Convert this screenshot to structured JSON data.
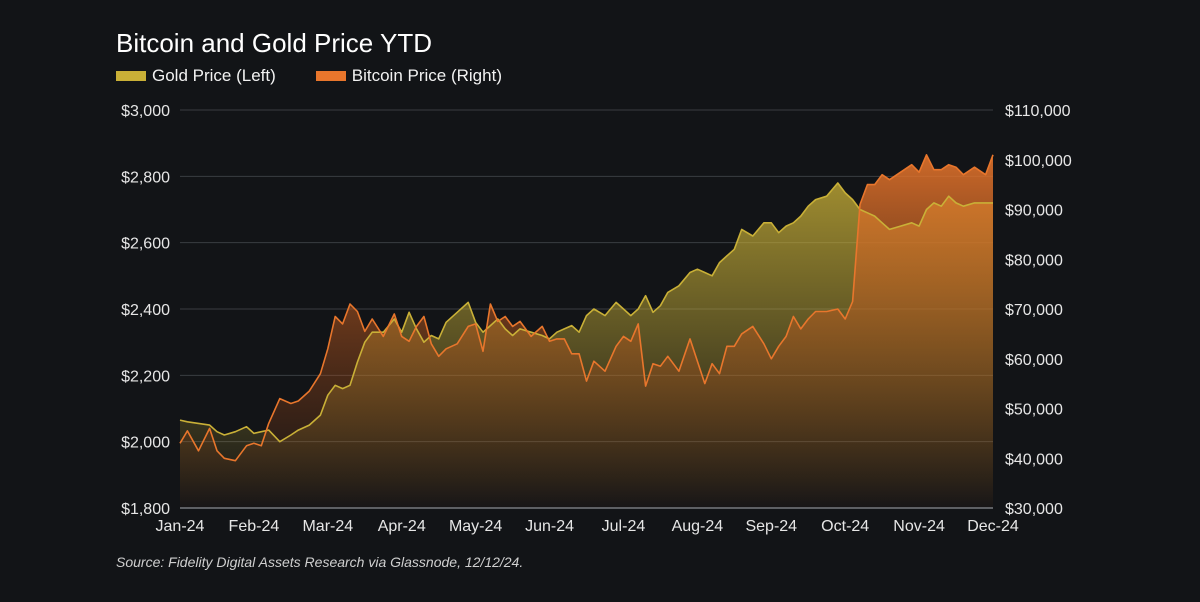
{
  "chart_data": {
    "type": "area",
    "title": "Bitcoin and Gold Price YTD",
    "legend_position": "top-left",
    "legend": [
      {
        "name": "Gold Price (Left)",
        "color": "#c9b037"
      },
      {
        "name": "Bitcoin Price (Right)",
        "color": "#e8762c"
      }
    ],
    "x_tick_labels": [
      "Jan-24",
      "Feb-24",
      "Mar-24",
      "Apr-24",
      "May-24",
      "Jun-24",
      "Jul-24",
      "Aug-24",
      "Sep-24",
      "Oct-24",
      "Nov-24",
      "Dec-24"
    ],
    "y_left": {
      "label": "Gold Price",
      "min": 1800,
      "max": 3000,
      "tick_labels": [
        "$1,800",
        "$2,000",
        "$2,200",
        "$2,400",
        "$2,600",
        "$2,800",
        "$3,000"
      ]
    },
    "y_right": {
      "label": "Bitcoin Price",
      "min": 30000,
      "max": 110000,
      "tick_labels": [
        "$30,000",
        "$40,000",
        "$50,000",
        "$60,000",
        "$70,000",
        "$80,000",
        "$90,000",
        "$100,000",
        "$110,000"
      ]
    },
    "grid": true,
    "series": [
      {
        "name": "Gold Price (Left)",
        "axis": "left",
        "color": "#c9b037",
        "x": [
          0,
          0.1,
          0.25,
          0.4,
          0.5,
          0.6,
          0.75,
          0.9,
          1.0,
          1.1,
          1.2,
          1.35,
          1.5,
          1.6,
          1.75,
          1.9,
          2.0,
          2.1,
          2.2,
          2.3,
          2.4,
          2.5,
          2.6,
          2.75,
          2.9,
          3.0,
          3.1,
          3.2,
          3.3,
          3.4,
          3.5,
          3.6,
          3.75,
          3.9,
          4.0,
          4.1,
          4.2,
          4.3,
          4.4,
          4.5,
          4.6,
          4.75,
          4.9,
          5.0,
          5.1,
          5.2,
          5.3,
          5.4,
          5.5,
          5.6,
          5.75,
          5.9,
          6.0,
          6.1,
          6.2,
          6.3,
          6.4,
          6.5,
          6.6,
          6.75,
          6.9,
          7.0,
          7.1,
          7.2,
          7.3,
          7.4,
          7.5,
          7.6,
          7.75,
          7.9,
          8.0,
          8.1,
          8.2,
          8.3,
          8.4,
          8.5,
          8.6,
          8.75,
          8.9,
          9.0,
          9.1,
          9.2,
          9.3,
          9.4,
          9.5,
          9.6,
          9.75,
          9.9,
          10.0,
          10.1,
          10.2,
          10.3,
          10.4,
          10.5,
          10.6,
          10.75,
          10.9,
          11.0
        ],
        "values": [
          2065,
          2060,
          2055,
          2050,
          2030,
          2020,
          2030,
          2045,
          2025,
          2030,
          2035,
          2000,
          2020,
          2035,
          2050,
          2080,
          2140,
          2170,
          2160,
          2170,
          2240,
          2300,
          2330,
          2330,
          2370,
          2330,
          2390,
          2340,
          2300,
          2320,
          2310,
          2360,
          2390,
          2420,
          2360,
          2330,
          2350,
          2370,
          2340,
          2320,
          2340,
          2330,
          2320,
          2310,
          2330,
          2340,
          2350,
          2330,
          2380,
          2400,
          2380,
          2420,
          2400,
          2380,
          2400,
          2440,
          2390,
          2410,
          2450,
          2470,
          2510,
          2520,
          2510,
          2500,
          2540,
          2560,
          2580,
          2640,
          2620,
          2660,
          2660,
          2630,
          2650,
          2660,
          2680,
          2710,
          2730,
          2740,
          2780,
          2750,
          2730,
          2700,
          2690,
          2680,
          2660,
          2640,
          2650,
          2660,
          2650,
          2700,
          2720,
          2710,
          2740,
          2720,
          2710,
          2720,
          2720,
          2720
        ]
      },
      {
        "name": "Bitcoin Price (Right)",
        "axis": "right",
        "color": "#e8762c",
        "x": [
          0,
          0.1,
          0.25,
          0.4,
          0.5,
          0.6,
          0.75,
          0.9,
          1.0,
          1.1,
          1.2,
          1.35,
          1.5,
          1.6,
          1.75,
          1.9,
          2.0,
          2.1,
          2.2,
          2.3,
          2.4,
          2.5,
          2.6,
          2.75,
          2.9,
          3.0,
          3.1,
          3.2,
          3.3,
          3.4,
          3.5,
          3.6,
          3.75,
          3.9,
          4.0,
          4.1,
          4.2,
          4.3,
          4.4,
          4.5,
          4.6,
          4.75,
          4.9,
          5.0,
          5.1,
          5.2,
          5.3,
          5.4,
          5.5,
          5.6,
          5.75,
          5.9,
          6.0,
          6.1,
          6.2,
          6.3,
          6.4,
          6.5,
          6.6,
          6.75,
          6.9,
          7.0,
          7.1,
          7.2,
          7.3,
          7.4,
          7.5,
          7.6,
          7.75,
          7.9,
          8.0,
          8.1,
          8.2,
          8.3,
          8.4,
          8.5,
          8.6,
          8.75,
          8.9,
          9.0,
          9.1,
          9.2,
          9.3,
          9.4,
          9.5,
          9.6,
          9.75,
          9.9,
          10.0,
          10.1,
          10.2,
          10.3,
          10.4,
          10.5,
          10.6,
          10.75,
          10.9,
          11.0
        ],
        "values": [
          43000,
          45500,
          41500,
          46000,
          41500,
          40000,
          39500,
          42500,
          43000,
          42500,
          47000,
          52000,
          51000,
          51500,
          53500,
          57000,
          62000,
          68500,
          67000,
          71000,
          69500,
          65500,
          68000,
          64500,
          69000,
          64500,
          63500,
          66500,
          68500,
          63000,
          60500,
          62000,
          63000,
          66500,
          67000,
          61500,
          71000,
          67500,
          68500,
          66500,
          67500,
          64500,
          66500,
          63500,
          64000,
          64000,
          61000,
          61000,
          55500,
          59500,
          57500,
          62500,
          64500,
          63500,
          67000,
          54500,
          59000,
          58500,
          60500,
          57500,
          64000,
          59500,
          55000,
          59000,
          57000,
          62500,
          62500,
          65000,
          66500,
          63000,
          60000,
          62500,
          64500,
          68500,
          66000,
          68000,
          69500,
          69500,
          70000,
          68000,
          71500,
          91000,
          95000,
          95000,
          97000,
          96000,
          97500,
          99000,
          97500,
          101000,
          98000,
          98000,
          99000,
          98500,
          97000,
          98500,
          97000,
          101000
        ]
      }
    ]
  },
  "source_note": "Source: Fidelity Digital Assets Research via Glassnode, 12/12/24."
}
